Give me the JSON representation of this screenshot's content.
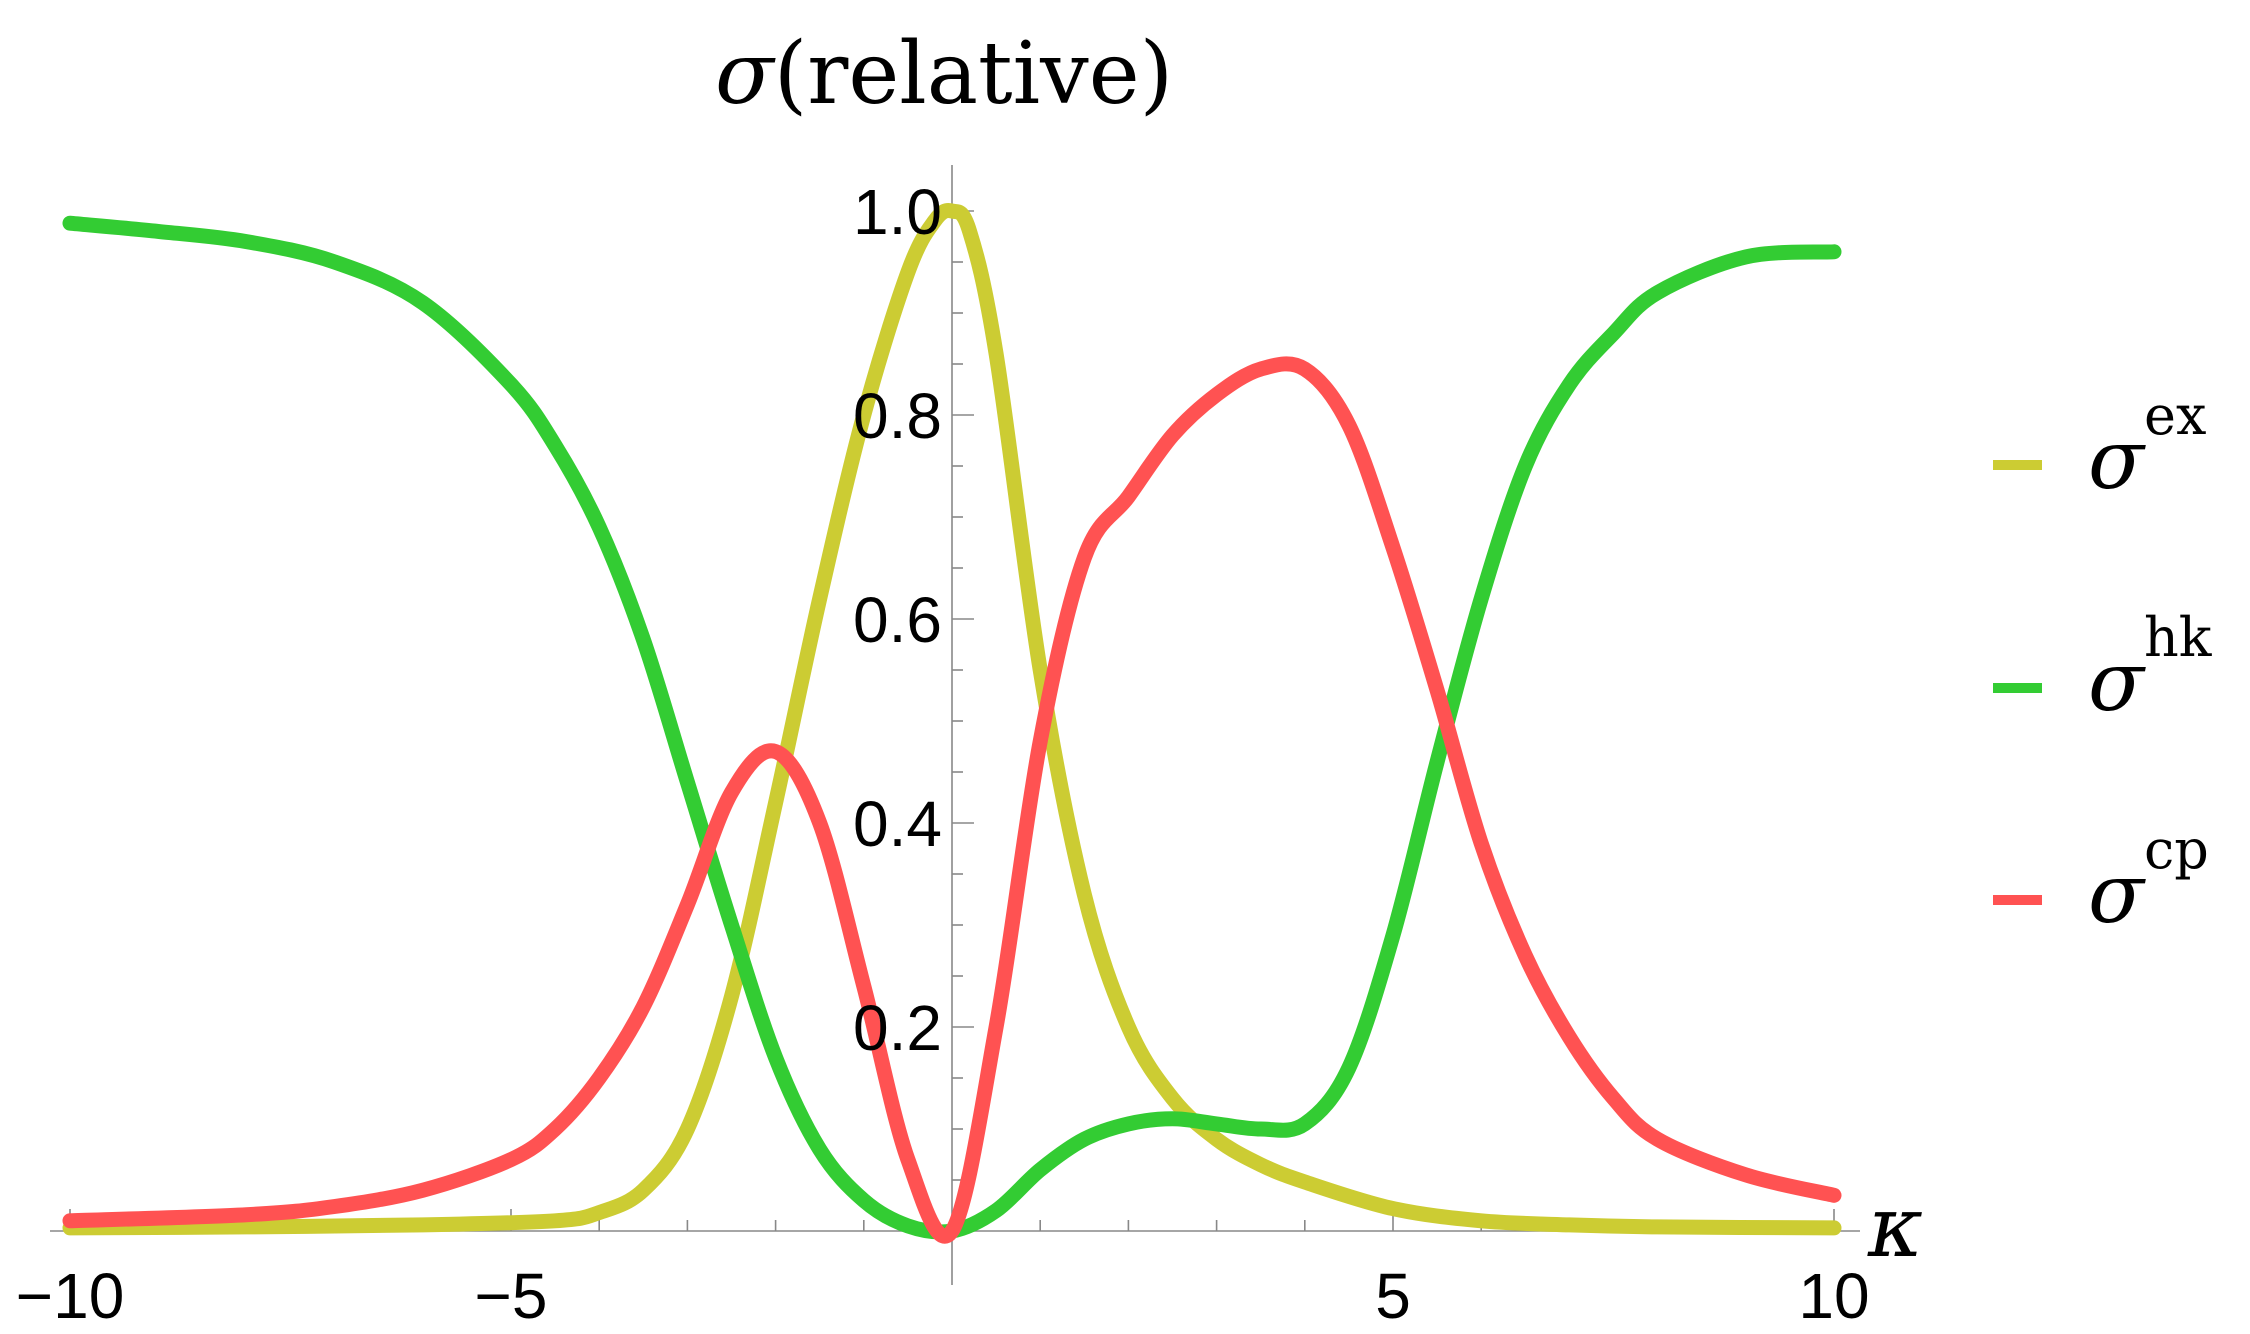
{
  "chart_data": {
    "type": "line",
    "ylabel_symbol": "σ",
    "ylabel_text": "(relative)",
    "xlabel_symbol": "κ",
    "xlim": [
      -10,
      10
    ],
    "ylim": [
      0,
      1.0
    ],
    "x_ticks": [
      {
        "value": -10,
        "label": "−10"
      },
      {
        "value": -5,
        "label": "−5"
      },
      {
        "value": 5,
        "label": "5"
      },
      {
        "value": 10,
        "label": "10"
      }
    ],
    "y_ticks": [
      {
        "value": 0.2,
        "label": "0.2"
      },
      {
        "value": 0.4,
        "label": "0.4"
      },
      {
        "value": 0.6,
        "label": "0.6"
      },
      {
        "value": 0.8,
        "label": "0.8"
      },
      {
        "value": 1.0,
        "label": "1.0"
      }
    ],
    "legend_position": "right",
    "series": [
      {
        "symbol": "σ",
        "superscript": "ex",
        "color": "#cccc33",
        "x": [
          -10,
          -8,
          -6,
          -4.5,
          -4,
          -3.5,
          -3,
          -2.5,
          -2,
          -1.5,
          -1,
          -0.5,
          -0.2,
          0,
          0.2,
          0.5,
          1,
          1.5,
          2,
          2.5,
          3,
          3.5,
          4,
          5,
          6,
          7,
          8,
          10
        ],
        "y": [
          0.003,
          0.004,
          0.006,
          0.01,
          0.018,
          0.04,
          0.1,
          0.23,
          0.42,
          0.62,
          0.8,
          0.94,
          0.99,
          1.0,
          0.98,
          0.86,
          0.55,
          0.33,
          0.2,
          0.13,
          0.09,
          0.065,
          0.048,
          0.022,
          0.01,
          0.006,
          0.004,
          0.003
        ]
      },
      {
        "symbol": "σ",
        "superscript": "hk",
        "color": "#33cc33",
        "x": [
          -10,
          -9,
          -8,
          -7,
          -6,
          -5,
          -4.5,
          -4,
          -3.5,
          -3,
          -2.5,
          -2,
          -1.5,
          -1,
          -0.5,
          0,
          0.5,
          1,
          1.5,
          2,
          2.5,
          3,
          3.5,
          4,
          4.5,
          5,
          5.5,
          6,
          6.5,
          7,
          7.5,
          8,
          9,
          10
        ],
        "y": [
          0.988,
          0.98,
          0.97,
          0.95,
          0.91,
          0.83,
          0.77,
          0.69,
          0.58,
          0.44,
          0.3,
          0.17,
          0.08,
          0.03,
          0.005,
          0.0,
          0.02,
          0.06,
          0.09,
          0.105,
          0.11,
          0.105,
          0.1,
          0.105,
          0.16,
          0.29,
          0.46,
          0.62,
          0.75,
          0.83,
          0.88,
          0.92,
          0.955,
          0.96
        ]
      },
      {
        "symbol": "σ",
        "superscript": "cp",
        "color": "#ff5252",
        "x": [
          -10,
          -8,
          -7,
          -6,
          -5,
          -4.5,
          -4,
          -3.5,
          -3,
          -2.5,
          -2,
          -1.5,
          -1,
          -0.5,
          0,
          0.5,
          1,
          1.5,
          2,
          2.5,
          3,
          3.5,
          4,
          4.5,
          5,
          5.5,
          6,
          6.5,
          7,
          7.5,
          8,
          9,
          10
        ],
        "y": [
          0.01,
          0.016,
          0.024,
          0.04,
          0.07,
          0.1,
          0.15,
          0.22,
          0.32,
          0.43,
          0.47,
          0.4,
          0.24,
          0.07,
          0.0,
          0.2,
          0.48,
          0.66,
          0.72,
          0.78,
          0.82,
          0.845,
          0.845,
          0.79,
          0.67,
          0.53,
          0.38,
          0.27,
          0.19,
          0.13,
          0.09,
          0.055,
          0.035
        ]
      }
    ]
  }
}
